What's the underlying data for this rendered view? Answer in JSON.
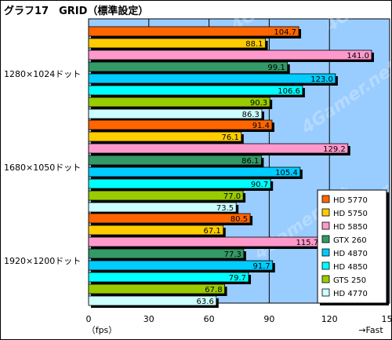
{
  "chart_data": {
    "type": "bar",
    "orientation": "horizontal",
    "title": "グラフ17　GRID（標準設定）",
    "categories": [
      "1280×1024ドット",
      "1680×1050ドット",
      "1920×1200ドット"
    ],
    "series": [
      {
        "name": "HD 5770",
        "color": "#ff6600",
        "values": [
          104.7,
          91.4,
          80.5
        ]
      },
      {
        "name": "HD 5750",
        "color": "#ffcc00",
        "values": [
          88.1,
          76.1,
          67.1
        ]
      },
      {
        "name": "HD 5850",
        "color": "#ff99cc",
        "values": [
          141.0,
          129.2,
          115.7
        ]
      },
      {
        "name": "GTX 260",
        "color": "#339966",
        "values": [
          99.1,
          86.1,
          77.3
        ]
      },
      {
        "name": "HD 4870",
        "color": "#00ccff",
        "values": [
          123.0,
          105.4,
          91.7
        ]
      },
      {
        "name": "HD 4850",
        "color": "#00ffff",
        "values": [
          106.6,
          90.7,
          79.7
        ]
      },
      {
        "name": "GTS 250",
        "color": "#99cc00",
        "values": [
          90.3,
          77.0,
          67.8
        ]
      },
      {
        "name": "HD 4770",
        "color": "#ccffff",
        "values": [
          86.3,
          73.5,
          63.6
        ]
      }
    ],
    "xlim": [
      0,
      150
    ],
    "xticks": [
      "0",
      "30",
      "60",
      "90",
      "120",
      "150"
    ],
    "xlabel": "（fps）",
    "direction_label": "→Fast",
    "grid": true,
    "legend_position": "bottom-right",
    "plot_background": "#99ccff",
    "watermark": "4Gamer.net"
  }
}
